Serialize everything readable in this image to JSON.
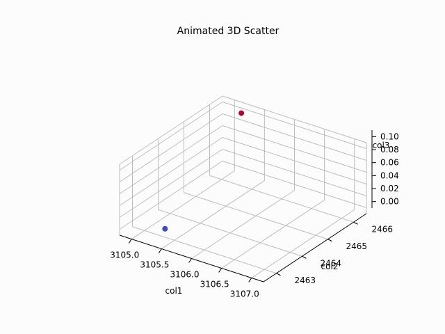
{
  "chart_data": {
    "type": "scatter",
    "projection": "3d",
    "title": "Animated 3D Scatter",
    "xlabel": "col1",
    "ylabel": "col2",
    "zlabel": "col3",
    "xticks": [
      "3105.0",
      "3105.5",
      "3106.0",
      "3106.5",
      "3107.0"
    ],
    "yticks": [
      "2463",
      "2464",
      "2465",
      "2466"
    ],
    "zticks": [
      "0.00",
      "0.02",
      "0.04",
      "0.06",
      "0.08",
      "0.10"
    ],
    "xlim": [
      3104.8,
      3107.2
    ],
    "ylim": [
      2462.5,
      2466.5
    ],
    "zlim": [
      -0.01,
      0.11
    ],
    "grid": true,
    "points": [
      {
        "x": 3105.3,
        "y": 2463.1,
        "z": 0.0,
        "color": "#3b4cc0"
      },
      {
        "x": 3105.2,
        "y": 2466.3,
        "z": 0.1,
        "color": "#b40426"
      }
    ]
  }
}
